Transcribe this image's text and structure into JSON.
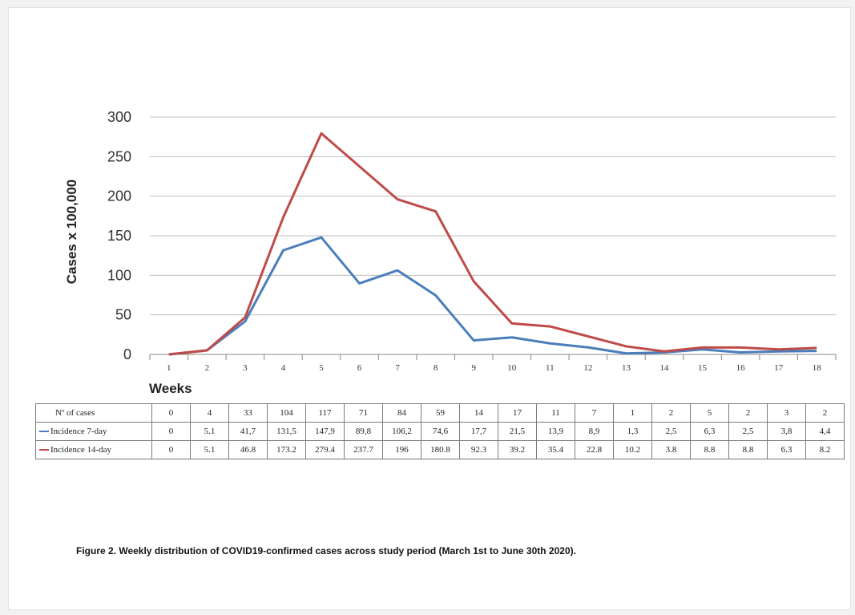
{
  "chart_data": {
    "type": "line",
    "title": "",
    "xlabel": "Weeks",
    "ylabel": "Cases x 100,000",
    "ylim": [
      0,
      300
    ],
    "yticks": [
      0,
      50,
      100,
      150,
      200,
      250,
      300
    ],
    "grid": true,
    "x": [
      1,
      2,
      3,
      4,
      5,
      6,
      7,
      8,
      9,
      10,
      11,
      12,
      13,
      14,
      15,
      16,
      17,
      18
    ],
    "series": [
      {
        "name": "Incidence 7-day",
        "color": "#4a7ebb",
        "values": [
          0,
          5.1,
          41.7,
          131.5,
          147.9,
          89.8,
          106.2,
          74.6,
          17.7,
          21.5,
          13.9,
          8.9,
          1.3,
          2.5,
          6.3,
          2.5,
          3.8,
          4.4
        ]
      },
      {
        "name": "Incidence 14-day",
        "color": "#be4b48",
        "values": [
          0,
          5.1,
          46.8,
          173.2,
          279.4,
          237.7,
          196,
          180.8,
          92.3,
          39.2,
          35.4,
          22.8,
          10.2,
          3.8,
          8.8,
          8.8,
          6.3,
          8.2
        ]
      }
    ]
  },
  "table": {
    "rows": [
      {
        "label": "Nº of cases",
        "legend": false,
        "values": [
          "0",
          "4",
          "33",
          "104",
          "117",
          "71",
          "84",
          "59",
          "14",
          "17",
          "11",
          "7",
          "1",
          "2",
          "5",
          "2",
          "3",
          "2"
        ]
      },
      {
        "label": "Incidence 7-day",
        "legend": true,
        "color": "#4a7ebb",
        "values": [
          "0",
          "5.1",
          "41,7",
          "131,5",
          "147,9",
          "89,8",
          "106,2",
          "74,6",
          "17,7",
          "21,5",
          "13,9",
          "8,9",
          "1,3",
          "2,5",
          "6,3",
          "2,5",
          "3,8",
          "4,4"
        ]
      },
      {
        "label": "Incidence 14-day",
        "legend": true,
        "color": "#be4b48",
        "values": [
          "0",
          "5.1",
          "46.8",
          "173.2",
          "279.4",
          "237.7",
          "196",
          "180.8",
          "92.3",
          "39.2",
          "35.4",
          "22.8",
          "10.2",
          "3.8",
          "8.8",
          "8.8",
          "6.3",
          "8.2"
        ]
      }
    ]
  },
  "caption": "Figure 2. Weekly distribution of COVID19-confirmed cases across study period (March 1st to June 30th 2020)."
}
